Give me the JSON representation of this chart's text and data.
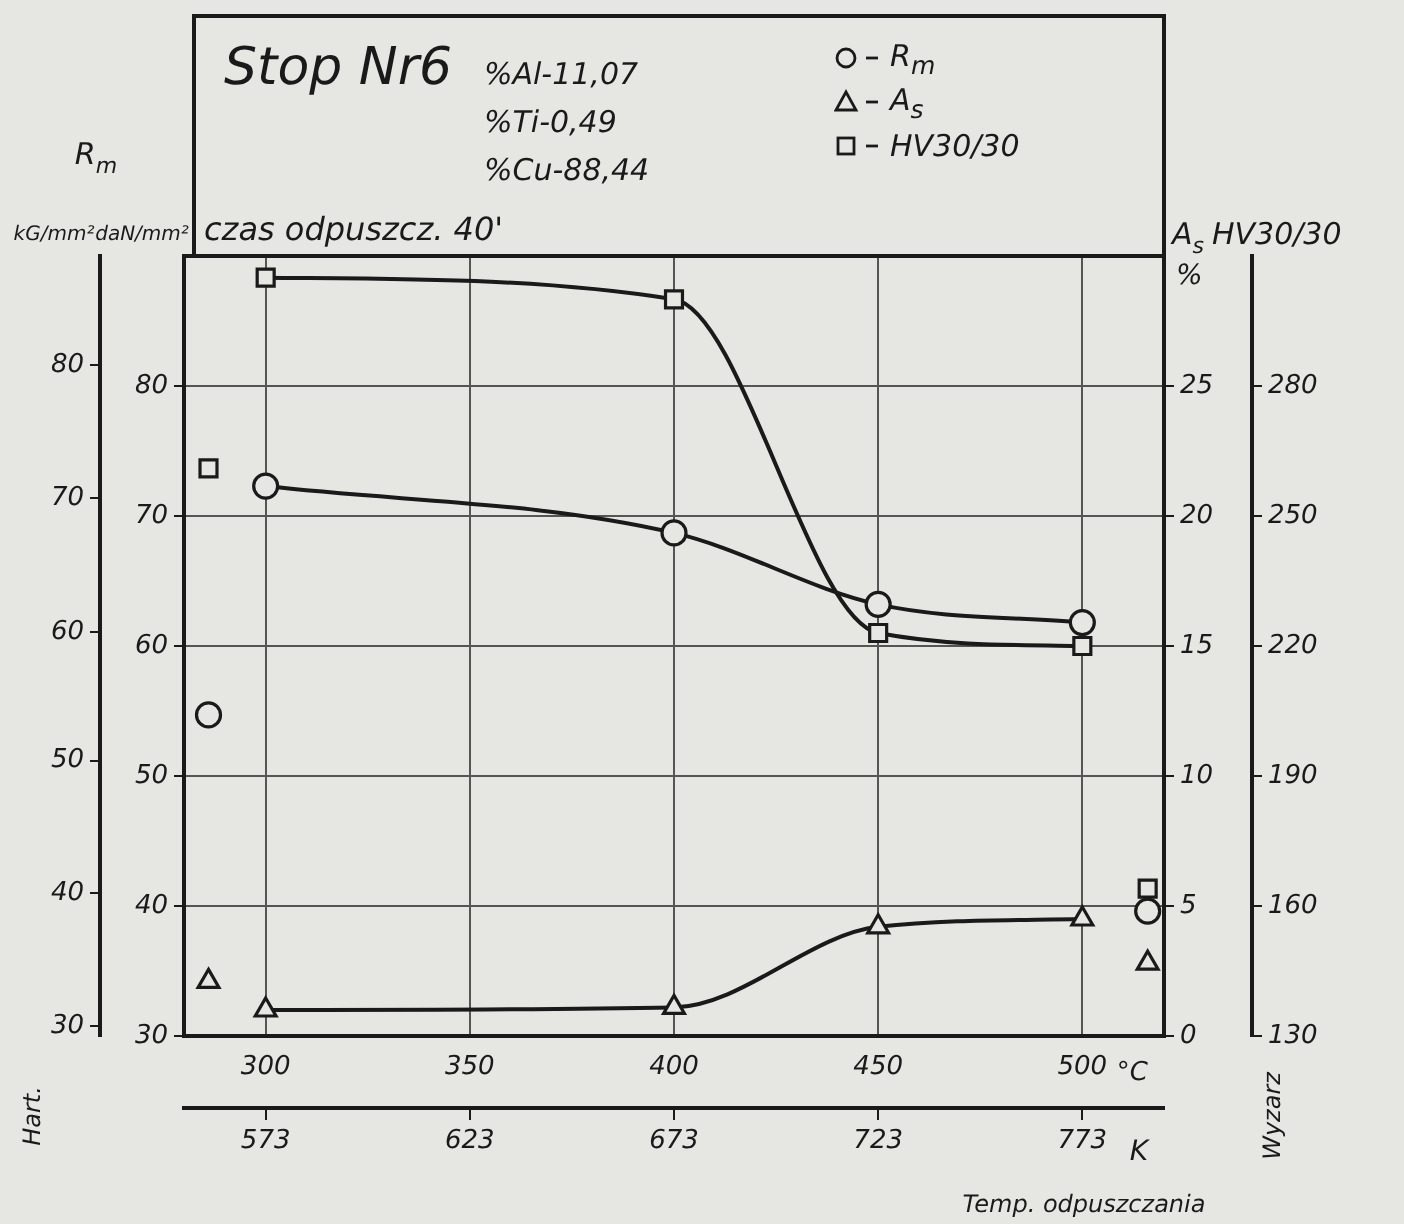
{
  "chart_data": {
    "type": "line",
    "title": "Stop Nr6",
    "annotations": [
      "%Al-11,07",
      "%Ti-0,49",
      "%Cu-88,44",
      "czas odpuszcz. 40'",
      "Temp. odpuszczania",
      "Hart.",
      "Wyzarz",
      "R$_{m}$",
      "%",
      "kG/mm²",
      "80",
      "70",
      "60",
      "50",
      "40",
      "30"
    ],
    "xlabel": "°C",
    "x2label": "K",
    "ylabel": "daN/mm²",
    "y2label": "A$_{s}$",
    "y3label": "HV30/30",
    "xlim": [
      280,
      520
    ],
    "xticks": [
      300,
      350,
      400,
      450,
      500
    ],
    "x2lim": [
      553,
      793
    ],
    "x2ticks": [
      573,
      623,
      673,
      723,
      773
    ],
    "ylim": [
      30,
      90
    ],
    "yticks": [
      30,
      40,
      50,
      60,
      70,
      80
    ],
    "y2lim": [
      0,
      30
    ],
    "y2ticks": [
      0,
      5,
      10,
      15,
      20,
      25
    ],
    "y3lim": [
      130,
      310
    ],
    "y3ticks": [
      130,
      160,
      190,
      220,
      250,
      280
    ],
    "grid": true,
    "legend": "top right",
    "line_style": "solid",
    "series": [
      {
        "name": "R$_{m}$",
        "color": "#1a1a1a",
        "axis": "y",
        "marker": "circle",
        "x": [
          300,
          400,
          450,
          500
        ],
        "values": [
          72.3,
          68.7,
          63.2,
          61.8
        ]
      },
      {
        "name": "A$_{s}$",
        "color": "#1a1a1a",
        "axis": "y2",
        "marker": "triangle",
        "x": [
          300,
          400,
          450,
          500
        ],
        "values": [
          1.0,
          1.1,
          4.2,
          4.5
        ]
      },
      {
        "name": "HV30/30",
        "color": "#1a1a1a",
        "axis": "y3",
        "marker": "square",
        "x": [
          300,
          400,
          450,
          500
        ],
        "values": [
          305,
          300,
          223,
          220
        ]
      },
      {
        "type": "scatter",
        "color": "#1a1a1a",
        "axis": "y",
        "marker": "circle",
        "x": [
          286,
          516
        ],
        "values": [
          54.7,
          39.6
        ]
      },
      {
        "type": "scatter",
        "color": "#1a1a1a",
        "axis": "y2",
        "marker": "triangle",
        "x": [
          286,
          516
        ],
        "values": [
          2.1,
          2.8
        ]
      },
      {
        "type": "scatter",
        "color": "#1a1a1a",
        "axis": "y3",
        "marker": "square",
        "x": [
          286,
          516
        ],
        "values": [
          261,
          164
        ]
      }
    ]
  }
}
